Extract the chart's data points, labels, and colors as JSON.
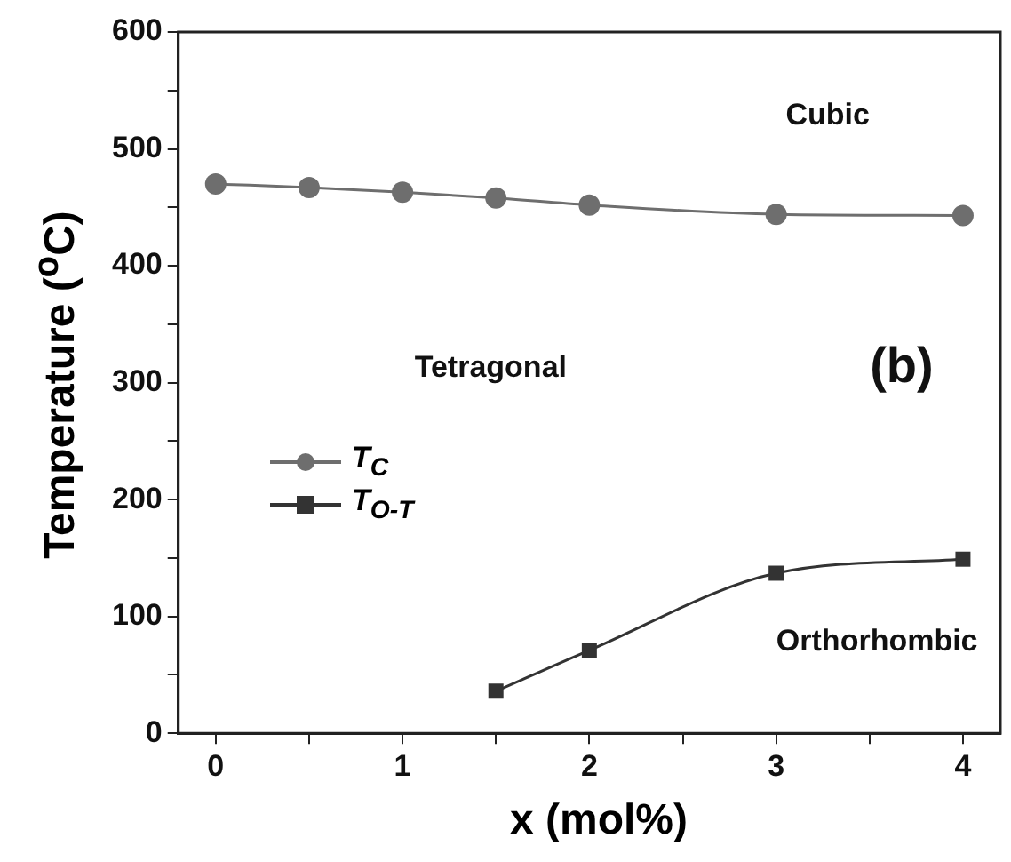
{
  "chart_data": {
    "type": "line",
    "xlabel": "x (mol%)",
    "ylabel": "Temperature ($^{o}$C)",
    "xlim": [
      -0.2,
      4.2
    ],
    "xticks": [
      0,
      {
        "value": 0.5,
        "label": null
      },
      1,
      {
        "value": 1.5,
        "label": null
      },
      2,
      {
        "value": 2.5,
        "label": null
      },
      3,
      {
        "value": 3.5,
        "label": null
      },
      4
    ],
    "ylim": [
      0,
      600
    ],
    "yticks": [
      0,
      {
        "value": 50,
        "label": null
      },
      100,
      {
        "value": 150,
        "label": null
      },
      200,
      {
        "value": 250,
        "label": null
      },
      300,
      {
        "value": 350,
        "label": null
      },
      400,
      {
        "value": 450,
        "label": null
      },
      500,
      {
        "value": 550,
        "label": null
      },
      600
    ],
    "grid": false,
    "legend": "left",
    "line_style": "solid",
    "series": [
      {
        "name": "T$_{C}$",
        "color": "#6e6e6e",
        "marker": "circle",
        "x": [
          0,
          0.5,
          1,
          1.5,
          2,
          3,
          4
        ],
        "values": [
          470,
          467,
          463,
          458,
          452,
          444,
          443
        ]
      },
      {
        "name": "T$_{O-T}$",
        "color": "#333333",
        "marker": "square",
        "x": [
          1.5,
          2,
          3,
          4
        ],
        "values": [
          36,
          71,
          137,
          149
        ]
      }
    ],
    "annotations": [
      "Cubic",
      "Tetragonal",
      "(b)",
      "Orthorhombic"
    ]
  }
}
